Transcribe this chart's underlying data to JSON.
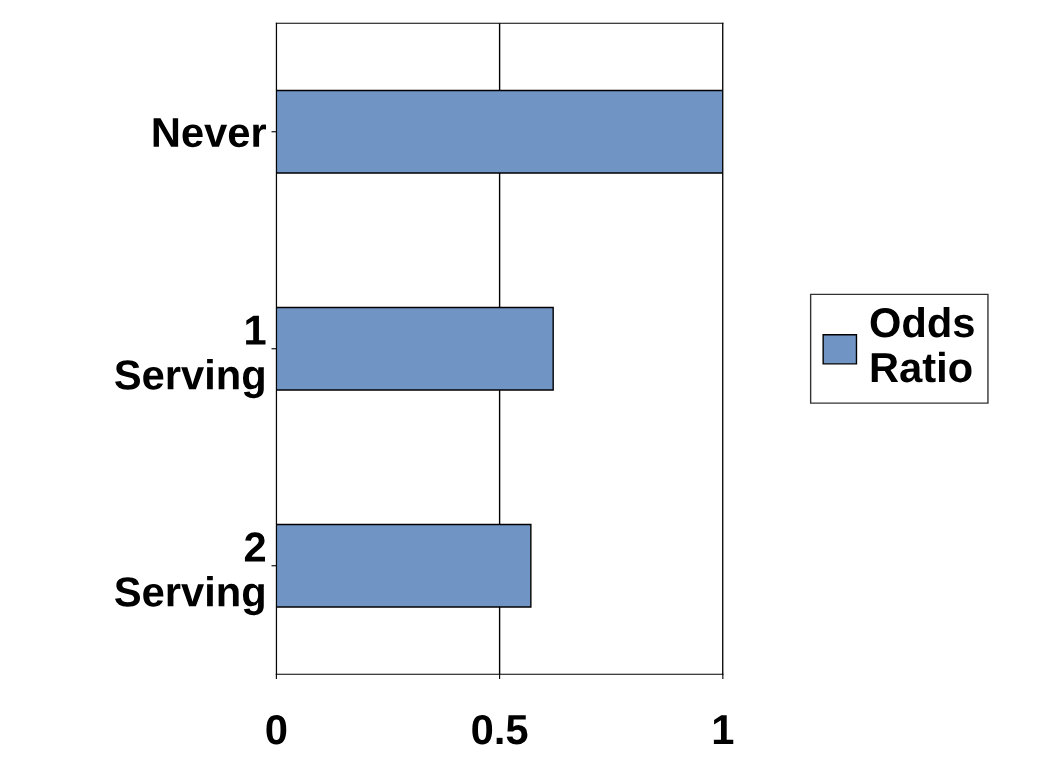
{
  "chart_data": {
    "type": "bar",
    "orientation": "horizontal",
    "categories": [
      "Never",
      "1\nServing",
      "2\nServing"
    ],
    "series": [
      {
        "name": "Odds\nRatio",
        "color": "#7094c4",
        "values": [
          1.0,
          0.62,
          0.57
        ]
      }
    ],
    "xlim": [
      0,
      1
    ],
    "xticks": [
      0,
      0.5,
      1
    ],
    "grid": "x",
    "legend": "right"
  }
}
